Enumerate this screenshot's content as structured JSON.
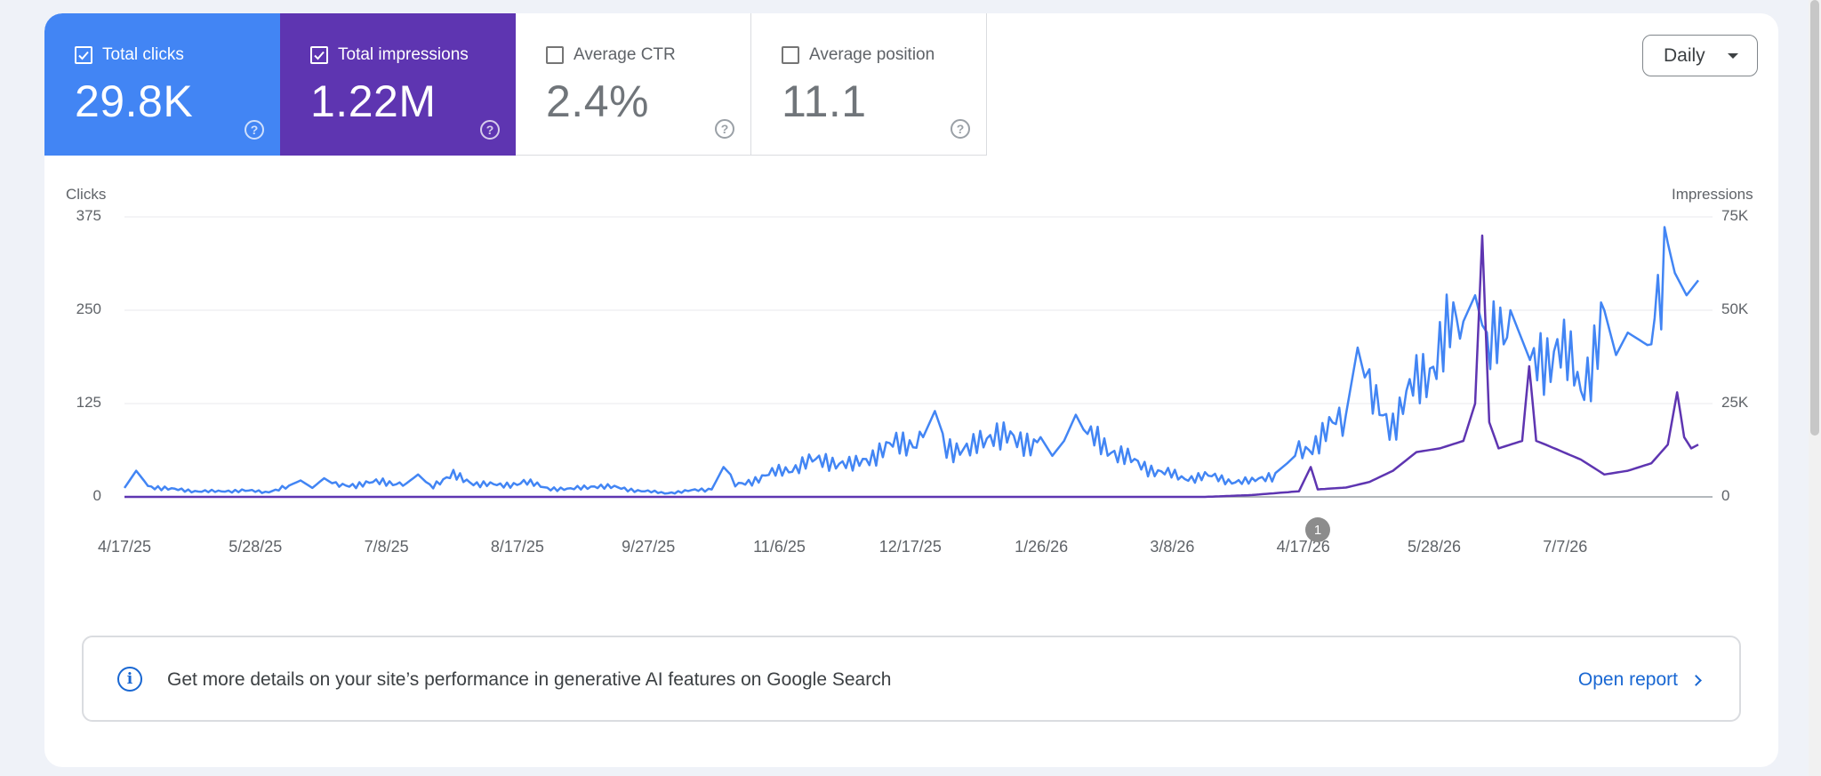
{
  "metrics": [
    {
      "label": "Total clicks",
      "value": "29.8K",
      "checked": true,
      "color": "#4285f4"
    },
    {
      "label": "Total impressions",
      "value": "1.22M",
      "checked": true,
      "color": "#5e35b1"
    },
    {
      "label": "Average CTR",
      "value": "2.4%",
      "checked": false
    },
    {
      "label": "Average position",
      "value": "11.1",
      "checked": false
    }
  ],
  "help_glyph": "?",
  "granularity": {
    "selected": "Daily"
  },
  "chart_data": {
    "type": "line",
    "ylabel_left": "Clicks",
    "ylabel_right": "Impressions",
    "y_left_ticks": [
      "375",
      "250",
      "125",
      "0"
    ],
    "y_right_ticks": [
      "75K",
      "50K",
      "25K",
      "0"
    ],
    "ylim_left": [
      0,
      375
    ],
    "ylim_right": [
      0,
      75000
    ],
    "x_ticks": [
      "4/17/25",
      "5/28/25",
      "7/8/25",
      "8/17/25",
      "9/27/25",
      "11/6/25",
      "12/17/25",
      "1/26/26",
      "3/8/26",
      "4/17/26",
      "5/28/26",
      "7/7/26"
    ],
    "grid": true,
    "series": [
      {
        "name": "Total clicks",
        "axis": "left",
        "color": "#4285f4",
        "points": [
          [
            0,
            12
          ],
          [
            5,
            35
          ],
          [
            10,
            15
          ],
          [
            20,
            10
          ],
          [
            30,
            8
          ],
          [
            40,
            7
          ],
          [
            50,
            9
          ],
          [
            60,
            6
          ],
          [
            70,
            15
          ],
          [
            75,
            22
          ],
          [
            80,
            12
          ],
          [
            85,
            25
          ],
          [
            90,
            15
          ],
          [
            100,
            17
          ],
          [
            110,
            20
          ],
          [
            120,
            18
          ],
          [
            125,
            30
          ],
          [
            130,
            15
          ],
          [
            140,
            28
          ],
          [
            150,
            18
          ],
          [
            160,
            15
          ],
          [
            170,
            20
          ],
          [
            180,
            12
          ],
          [
            190,
            10
          ],
          [
            200,
            15
          ],
          [
            210,
            12
          ],
          [
            220,
            8
          ],
          [
            230,
            5
          ],
          [
            240,
            8
          ],
          [
            250,
            10
          ],
          [
            255,
            40
          ],
          [
            258,
            30
          ],
          [
            260,
            15
          ],
          [
            270,
            25
          ],
          [
            280,
            35
          ],
          [
            290,
            45
          ],
          [
            300,
            50
          ],
          [
            310,
            40
          ],
          [
            320,
            60
          ],
          [
            330,
            70
          ],
          [
            340,
            80
          ],
          [
            345,
            115
          ],
          [
            350,
            70
          ],
          [
            360,
            60
          ],
          [
            370,
            90
          ],
          [
            380,
            70
          ],
          [
            390,
            80
          ],
          [
            395,
            55
          ],
          [
            400,
            75
          ],
          [
            405,
            110
          ],
          [
            410,
            80
          ],
          [
            420,
            65
          ],
          [
            430,
            45
          ],
          [
            440,
            35
          ],
          [
            450,
            25
          ],
          [
            460,
            28
          ],
          [
            470,
            22
          ],
          [
            480,
            20
          ],
          [
            490,
            32
          ],
          [
            495,
            45
          ],
          [
            500,
            60
          ],
          [
            510,
            80
          ],
          [
            520,
            110
          ],
          [
            525,
            200
          ],
          [
            528,
            160
          ],
          [
            530,
            130
          ],
          [
            540,
            100
          ],
          [
            550,
            150
          ],
          [
            560,
            200
          ],
          [
            570,
            235
          ],
          [
            575,
            270
          ],
          [
            578,
            230
          ],
          [
            580,
            180
          ],
          [
            590,
            250
          ],
          [
            595,
            210
          ],
          [
            600,
            170
          ],
          [
            610,
            210
          ],
          [
            620,
            140
          ],
          [
            630,
            250
          ],
          [
            635,
            190
          ],
          [
            640,
            220
          ],
          [
            645,
            210
          ],
          [
            650,
            200
          ],
          [
            657,
            340
          ],
          [
            660,
            300
          ],
          [
            665,
            270
          ],
          [
            670,
            290
          ]
        ]
      },
      {
        "name": "Total impressions",
        "axis": "right",
        "color": "#5e35b1",
        "points": [
          [
            0,
            0
          ],
          [
            100,
            0
          ],
          [
            200,
            0
          ],
          [
            300,
            0
          ],
          [
            400,
            0
          ],
          [
            460,
            0
          ],
          [
            480,
            500
          ],
          [
            500,
            1500
          ],
          [
            505,
            8000
          ],
          [
            508,
            2000
          ],
          [
            520,
            2500
          ],
          [
            530,
            4000
          ],
          [
            540,
            7000
          ],
          [
            550,
            12000
          ],
          [
            560,
            13000
          ],
          [
            570,
            15000
          ],
          [
            575,
            25000
          ],
          [
            578,
            70000
          ],
          [
            581,
            20000
          ],
          [
            585,
            13000
          ],
          [
            595,
            15000
          ],
          [
            598,
            35000
          ],
          [
            601,
            15000
          ],
          [
            605,
            14000
          ],
          [
            620,
            10000
          ],
          [
            630,
            6000
          ],
          [
            640,
            7000
          ],
          [
            650,
            9000
          ],
          [
            657,
            14000
          ],
          [
            661,
            28000
          ],
          [
            664,
            16000
          ],
          [
            667,
            13000
          ],
          [
            670,
            14000
          ]
        ]
      }
    ],
    "annotation": {
      "x_index": 460,
      "label": "1"
    }
  },
  "banner": {
    "text": "Get more details on your site’s performance in generative AI features on Google Search",
    "link": "Open report",
    "info_glyph": "i"
  }
}
